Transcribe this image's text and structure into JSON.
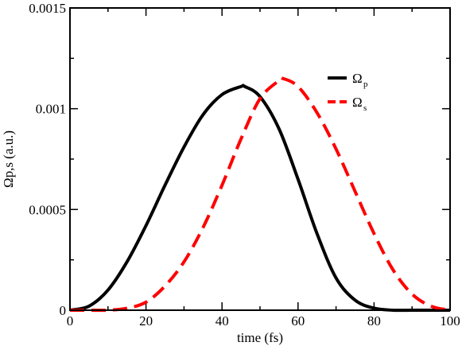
{
  "chart_data": {
    "type": "line",
    "title": "",
    "xlabel": "time (fs)",
    "ylabel": "Ωp,s (a.u.)",
    "xlim": [
      0,
      100
    ],
    "ylim": [
      0,
      0.0015
    ],
    "x_ticks": [
      0,
      20,
      40,
      60,
      80,
      100
    ],
    "x_tick_labels": [
      "0",
      "20",
      "40",
      "60",
      "80",
      "100"
    ],
    "y_ticks": [
      0,
      0.0005,
      0.001,
      0.0015
    ],
    "y_tick_labels": [
      "0",
      "0.0005",
      "0.001",
      "0.0015"
    ],
    "grid": false,
    "legend_position": "top-right",
    "series": [
      {
        "name": "Ω",
        "name_subscript": "p",
        "color": "#000000",
        "dash": "solid",
        "x": [
          0,
          5,
          10,
          15,
          20,
          25,
          30,
          35,
          40,
          45,
          46,
          50,
          55,
          60,
          65,
          70,
          75,
          80,
          85,
          90,
          95,
          100
        ],
        "y": [
          0,
          2e-05,
          0.0001,
          0.00024,
          0.00042,
          0.00062,
          0.00081,
          0.00097,
          0.00107,
          0.00111,
          0.00111,
          0.00106,
          0.0009,
          0.00065,
          0.00038,
          0.00016,
          5e-05,
          1e-05,
          0.0,
          0.0,
          0.0,
          0.0
        ]
      },
      {
        "name": "Ω",
        "name_subscript": "s",
        "color": "#ff0000",
        "dash": "dashed",
        "x": [
          0,
          5,
          10,
          15,
          20,
          25,
          30,
          35,
          40,
          45,
          50,
          55,
          56,
          60,
          65,
          70,
          75,
          80,
          85,
          90,
          95,
          100
        ],
        "y": [
          0,
          0.0,
          0.0,
          1e-05,
          4e-05,
          0.00012,
          0.00024,
          0.00041,
          0.00062,
          0.00085,
          0.00105,
          0.00114,
          0.00115,
          0.00111,
          0.00098,
          0.0008,
          0.00059,
          0.00038,
          0.0002,
          8e-05,
          2e-05,
          0.0
        ]
      }
    ]
  }
}
